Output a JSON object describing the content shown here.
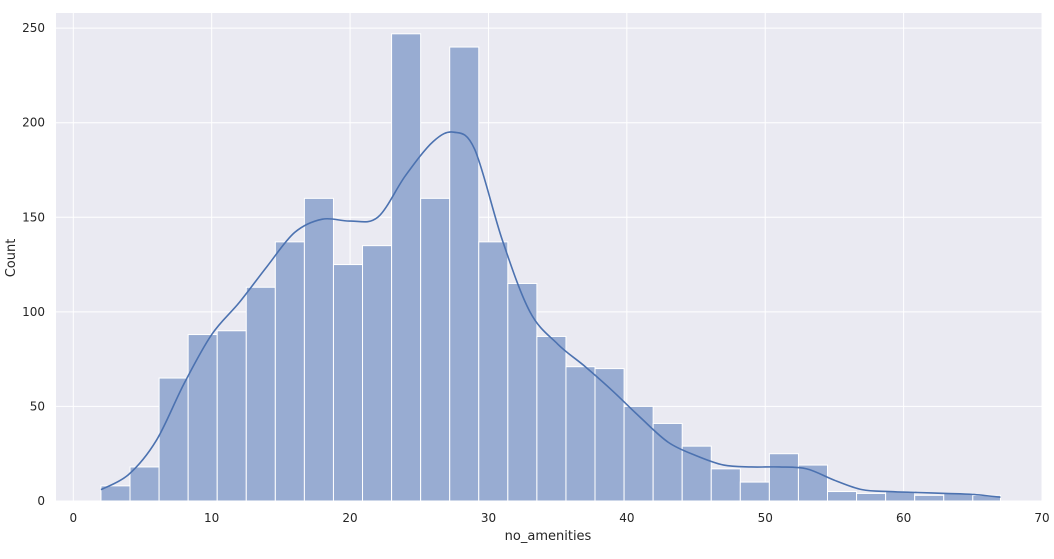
{
  "chart_data": {
    "type": "bar",
    "subtype": "histogram-with-kde",
    "title": "",
    "xlabel": "no_amenities",
    "ylabel": "Count",
    "xlim": [
      -1.25,
      70
    ],
    "ylim": [
      0,
      258
    ],
    "xticks": [
      0,
      10,
      20,
      30,
      40,
      50,
      60,
      70
    ],
    "yticks": [
      0,
      50,
      100,
      150,
      200,
      250
    ],
    "grid": true,
    "background": "#eaeaf2",
    "bar_color": "#98acd2",
    "bar_edge_color": "#ffffff",
    "line_color": "#4c72b0",
    "bin_edges": [
      2.0,
      4.1,
      6.2,
      8.3,
      10.4,
      12.5,
      14.6,
      16.7,
      18.8,
      20.9,
      23.0,
      25.1,
      27.2,
      29.3,
      31.4,
      33.5,
      35.6,
      37.7,
      39.8,
      41.9,
      44.0,
      46.1,
      48.2,
      50.3,
      52.4,
      54.5,
      56.6,
      58.7,
      60.8,
      62.9,
      65.0,
      67.0
    ],
    "counts": [
      8,
      18,
      65,
      88,
      90,
      113,
      137,
      160,
      125,
      135,
      247,
      160,
      240,
      137,
      115,
      87,
      71,
      70,
      50,
      41,
      29,
      17,
      10,
      25,
      19,
      5,
      4,
      5,
      3,
      4,
      3
    ],
    "kde": {
      "x": [
        2,
        4,
        6,
        8,
        10,
        12,
        14,
        16,
        18,
        20,
        22,
        24,
        26,
        27.5,
        29,
        31,
        33,
        35,
        37,
        39,
        41,
        43,
        45,
        47,
        49,
        51,
        53,
        55,
        57,
        59,
        61,
        63,
        65,
        67
      ],
      "y": [
        6,
        14,
        32,
        62,
        88,
        105,
        124,
        142,
        149,
        148,
        150,
        172,
        190,
        195,
        186,
        138,
        100,
        83,
        71,
        58,
        44,
        31,
        24,
        19,
        18,
        18,
        17,
        11,
        6,
        5,
        4.5,
        4,
        3.5,
        2
      ]
    }
  }
}
